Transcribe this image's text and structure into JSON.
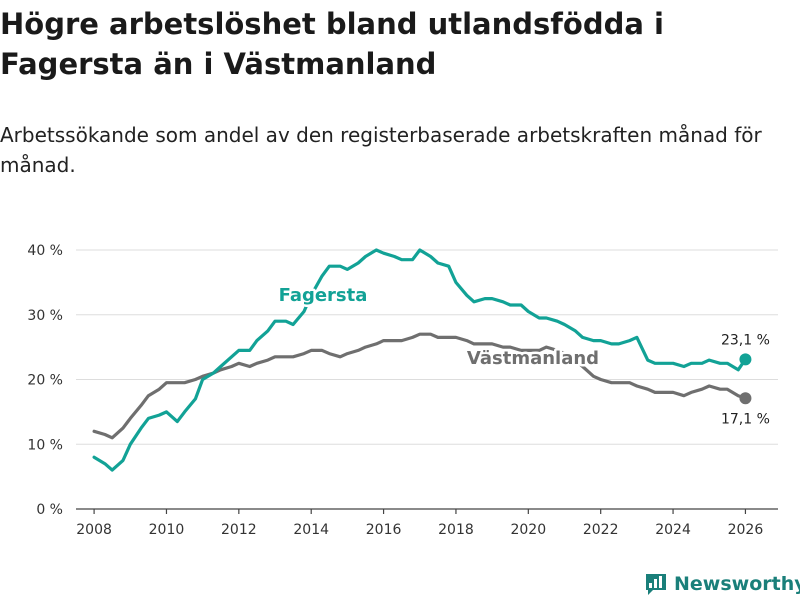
{
  "title": "Högre arbetslöshet bland utlandsfödda i Fagersta än i Västmanland",
  "subtitle": "Arbetssökande som andel av den registerbaserade arbetskraften månad för månad.",
  "brand": {
    "name": "Newsworthy",
    "icon": "newsworthy-logo-icon"
  },
  "colors": {
    "Fagersta": "#12a296",
    "Västmanland": "#6f6f6f",
    "axis": "#444444",
    "grid": "#dddddd"
  },
  "chart_data": {
    "type": "line",
    "title": "Högre arbetslöshet bland utlandsfödda i Fagersta än i Västmanland",
    "xlabel": "",
    "ylabel": "",
    "xlim": [
      2007.5,
      2026.9
    ],
    "ylim": [
      0,
      40
    ],
    "xticks": [
      2008,
      2010,
      2012,
      2014,
      2016,
      2018,
      2020,
      2022,
      2024,
      2026
    ],
    "yticks": [
      0,
      10,
      20,
      30,
      40
    ],
    "ytick_labels": [
      "0 %",
      "10 %",
      "20 %",
      "30 %",
      "40 %"
    ],
    "grid": "horizontal",
    "series": [
      {
        "name": "Fagersta",
        "label": "Fagersta",
        "end_label": "23,1 %",
        "x": [
          2008.0,
          2008.3,
          2008.5,
          2008.8,
          2009.0,
          2009.3,
          2009.5,
          2009.8,
          2010.0,
          2010.3,
          2010.5,
          2010.8,
          2011.0,
          2011.3,
          2011.5,
          2011.8,
          2012.0,
          2012.3,
          2012.5,
          2012.8,
          2013.0,
          2013.3,
          2013.5,
          2013.8,
          2014.0,
          2014.3,
          2014.5,
          2014.8,
          2015.0,
          2015.3,
          2015.5,
          2015.8,
          2016.0,
          2016.3,
          2016.5,
          2016.8,
          2017.0,
          2017.3,
          2017.5,
          2017.8,
          2018.0,
          2018.3,
          2018.5,
          2018.8,
          2019.0,
          2019.3,
          2019.5,
          2019.8,
          2020.0,
          2020.3,
          2020.5,
          2020.8,
          2021.0,
          2021.3,
          2021.5,
          2021.8,
          2022.0,
          2022.3,
          2022.5,
          2022.8,
          2023.0,
          2023.3,
          2023.5,
          2023.8,
          2024.0,
          2024.3,
          2024.5,
          2024.8,
          2025.0,
          2025.3,
          2025.5,
          2025.8,
          2026.0
        ],
        "values": [
          8.0,
          7.0,
          6.0,
          7.5,
          10.0,
          12.5,
          14.0,
          14.5,
          15.0,
          13.5,
          15.0,
          17.0,
          20.0,
          21.0,
          22.0,
          23.5,
          24.5,
          24.5,
          26.0,
          27.5,
          29.0,
          29.0,
          28.5,
          30.5,
          33.0,
          36.0,
          37.5,
          37.5,
          37.0,
          38.0,
          39.0,
          40.0,
          39.5,
          39.0,
          38.5,
          38.5,
          40.0,
          39.0,
          38.0,
          37.5,
          35.0,
          33.0,
          32.0,
          32.5,
          32.5,
          32.0,
          31.5,
          31.5,
          30.5,
          29.5,
          29.5,
          29.0,
          28.5,
          27.5,
          26.5,
          26.0,
          26.0,
          25.5,
          25.5,
          26.0,
          26.5,
          23.0,
          22.5,
          22.5,
          22.5,
          22.0,
          22.5,
          22.5,
          23.0,
          22.5,
          22.5,
          21.5,
          23.1
        ]
      },
      {
        "name": "Västmanland",
        "label": "Västmanland",
        "end_label": "17,1 %",
        "x": [
          2008.0,
          2008.3,
          2008.5,
          2008.8,
          2009.0,
          2009.3,
          2009.5,
          2009.8,
          2010.0,
          2010.3,
          2010.5,
          2010.8,
          2011.0,
          2011.3,
          2011.5,
          2011.8,
          2012.0,
          2012.3,
          2012.5,
          2012.8,
          2013.0,
          2013.3,
          2013.5,
          2013.8,
          2014.0,
          2014.3,
          2014.5,
          2014.8,
          2015.0,
          2015.3,
          2015.5,
          2015.8,
          2016.0,
          2016.3,
          2016.5,
          2016.8,
          2017.0,
          2017.3,
          2017.5,
          2017.8,
          2018.0,
          2018.3,
          2018.5,
          2018.8,
          2019.0,
          2019.3,
          2019.5,
          2019.8,
          2020.0,
          2020.3,
          2020.5,
          2020.8,
          2021.0,
          2021.3,
          2021.5,
          2021.8,
          2022.0,
          2022.3,
          2022.5,
          2022.8,
          2023.0,
          2023.3,
          2023.5,
          2023.8,
          2024.0,
          2024.3,
          2024.5,
          2024.8,
          2025.0,
          2025.3,
          2025.5,
          2025.8,
          2026.0
        ],
        "values": [
          12.0,
          11.5,
          11.0,
          12.5,
          14.0,
          16.0,
          17.5,
          18.5,
          19.5,
          19.5,
          19.5,
          20.0,
          20.5,
          21.0,
          21.5,
          22.0,
          22.5,
          22.0,
          22.5,
          23.0,
          23.5,
          23.5,
          23.5,
          24.0,
          24.5,
          24.5,
          24.0,
          23.5,
          24.0,
          24.5,
          25.0,
          25.5,
          26.0,
          26.0,
          26.0,
          26.5,
          27.0,
          27.0,
          26.5,
          26.5,
          26.5,
          26.0,
          25.5,
          25.5,
          25.5,
          25.0,
          25.0,
          24.5,
          24.5,
          24.5,
          25.0,
          24.5,
          24.0,
          23.0,
          22.0,
          20.5,
          20.0,
          19.5,
          19.5,
          19.5,
          19.0,
          18.5,
          18.0,
          18.0,
          18.0,
          17.5,
          18.0,
          18.5,
          19.0,
          18.5,
          18.5,
          17.5,
          17.1
        ]
      }
    ]
  }
}
